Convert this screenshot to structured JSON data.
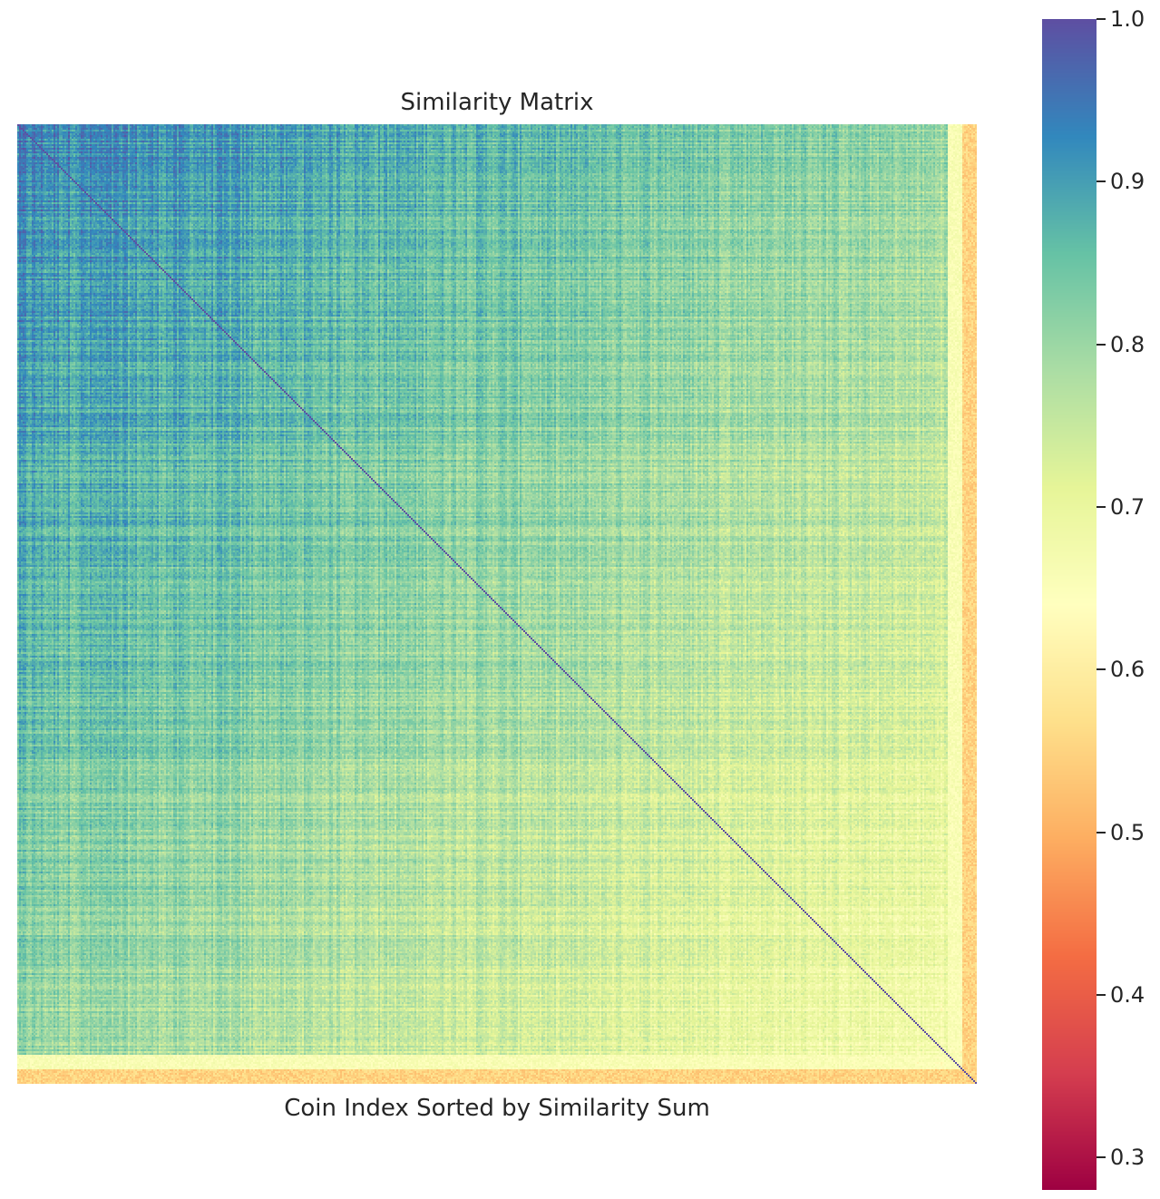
{
  "chart_data": {
    "type": "heatmap",
    "title": "Similarity Matrix",
    "xlabel": "Coin Index Sorted by Similarity Sum",
    "ylabel": "",
    "colormap": "Spectral",
    "color_range": [
      0.28,
      1.0
    ],
    "colorbar_ticks": [
      {
        "value": 1.0,
        "label": "1.0"
      },
      {
        "value": 0.9,
        "label": "0.9"
      },
      {
        "value": 0.8,
        "label": "0.8"
      },
      {
        "value": 0.7,
        "label": "0.7"
      },
      {
        "value": 0.6,
        "label": "0.6"
      },
      {
        "value": 0.5,
        "label": "0.5"
      },
      {
        "value": 0.4,
        "label": "0.4"
      },
      {
        "value": 0.3,
        "label": "0.3"
      }
    ],
    "pattern": {
      "description": "sorted similarity matrix: highest similarity in top-left, decreasing toward bottom-right; last rows/columns drop to low values; diagonal equals 1.0",
      "top_left_value": 0.93,
      "bottom_right_value": 0.66,
      "edge_value": 0.55,
      "diagonal_value": 1.0
    },
    "colorscale": [
      "#9e0142",
      "#d53e4f",
      "#f46d43",
      "#fdae61",
      "#fee08b",
      "#ffffbf",
      "#e6f598",
      "#abdda4",
      "#66c2a5",
      "#3288bd",
      "#5e4fa2"
    ]
  }
}
